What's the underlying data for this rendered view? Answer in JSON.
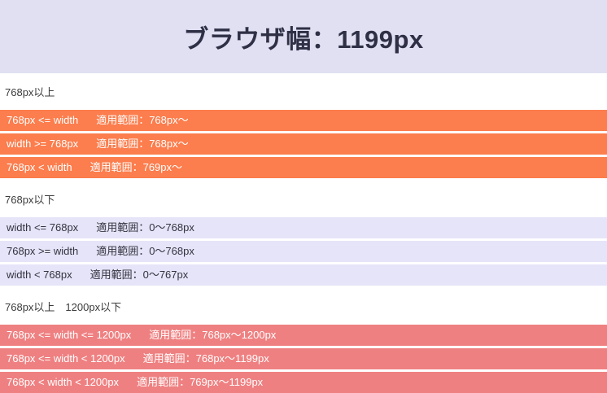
{
  "header": {
    "title": "ブラウザ幅：1199px"
  },
  "colors": {
    "header_bg": "#e0e0f2",
    "orange_bar": "#fc7d4d",
    "lavender_bar": "#e5e4f8",
    "salmon_bar": "#ef8081",
    "title_text": "#2f2f46",
    "label_text": "#3c3c3c"
  },
  "sections": [
    {
      "label": "768px以上",
      "style": "orange",
      "bars": [
        {
          "condition": "768px <= width",
          "range": "適用範囲：768px〜"
        },
        {
          "condition": "width >= 768px",
          "range": "適用範囲：768px〜"
        },
        {
          "condition": "768px < width",
          "range": "適用範囲：769px〜"
        }
      ]
    },
    {
      "label": "768px以下",
      "style": "lavender",
      "bars": [
        {
          "condition": "width <= 768px",
          "range": "適用範囲：0〜768px"
        },
        {
          "condition": "768px >= width",
          "range": "適用範囲：0〜768px"
        },
        {
          "condition": "width < 768px",
          "range": "適用範囲：0〜767px"
        }
      ]
    },
    {
      "label": "768px以上　1200px以下",
      "style": "salmon",
      "bars": [
        {
          "condition": "768px <= width <= 1200px",
          "range": "適用範囲：768px〜1200px"
        },
        {
          "condition": "768px <= width < 1200px",
          "range": "適用範囲：768px〜1199px"
        },
        {
          "condition": "768px < width < 1200px",
          "range": "適用範囲：769px〜1199px"
        }
      ]
    }
  ]
}
